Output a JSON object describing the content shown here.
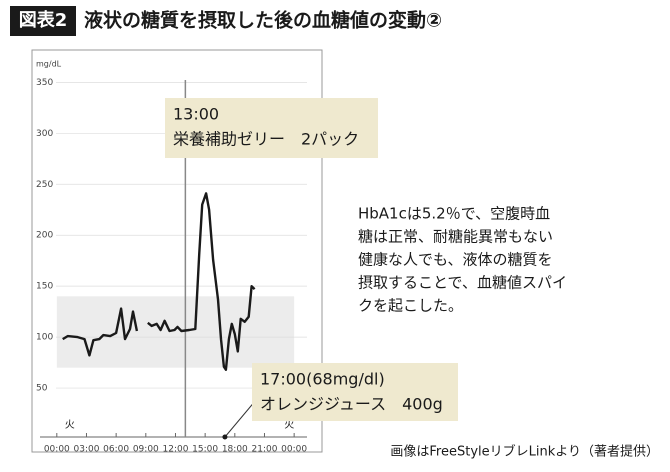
{
  "chart_data": {
    "type": "line",
    "badge": "図表2",
    "title": "液状の糖質を摂取した後の血糖値の変動②",
    "y_unit": "mg/dL",
    "x": [
      0.6,
      1.1,
      2.1,
      2.8,
      3.3,
      3.7,
      4.3,
      4.7,
      5.4,
      6.0,
      6.5,
      6.9,
      7.4,
      7.7,
      8.1,
      8.6,
      9.2,
      9.6,
      10.1,
      10.5,
      10.9,
      11.4,
      11.9,
      12.2,
      12.6,
      13.4,
      14.0,
      14.4,
      14.7,
      15.1,
      15.4,
      15.8,
      16.3,
      16.6,
      16.9,
      17.1,
      17.4,
      17.7,
      18.0,
      18.3,
      18.6,
      19.0,
      19.4,
      19.7,
      20.0
    ],
    "series": [
      {
        "name": "血糖値",
        "color": "#1a1a1a",
        "values": [
          98,
          101,
          100,
          98,
          82,
          97,
          98,
          102,
          101,
          104,
          128,
          98,
          108,
          125,
          106,
          null,
          114,
          111,
          113,
          107,
          116,
          106,
          107,
          110,
          106,
          107,
          108,
          181,
          230,
          241,
          225,
          176,
          137,
          98,
          71,
          68,
          98,
          113,
          103,
          86,
          118,
          115,
          120,
          150,
          147
        ]
      }
    ],
    "xlim": [
      -1.7,
      25.3
    ],
    "xticks": [
      {
        "value": 0,
        "label": "00:00"
      },
      {
        "value": 3,
        "label": "03:00"
      },
      {
        "value": 6,
        "label": "06:00"
      },
      {
        "value": 9,
        "label": "09:00"
      },
      {
        "value": 12,
        "label": "12:00"
      },
      {
        "value": 15,
        "label": "15:00"
      },
      {
        "value": 18,
        "label": "18:00"
      },
      {
        "value": 21,
        "label": "21:00"
      },
      {
        "value": 24,
        "label": "00:00"
      }
    ],
    "ylim": [
      0,
      370
    ],
    "yticks": [
      50,
      100,
      150,
      200,
      250,
      300,
      350
    ],
    "target_range": [
      70,
      140
    ],
    "target_color": "#ececec",
    "day_labels": [
      "火",
      "火"
    ],
    "day_label_x": [
      0.8,
      23
    ],
    "event_line_x": 13,
    "event_point_x": 17,
    "annotations": [
      {
        "lines": [
          "13:00",
          "栄養補助ゼリー　2パック"
        ]
      },
      {
        "lines": [
          "17:00(68mg/dl)",
          "オレンジジュース　400g"
        ]
      }
    ],
    "note_lines": [
      "HbA1cは5.2％で、空腹時血",
      "糖は正常、耐糖能異常もない",
      "健康な人でも、液体の糖質を",
      "摂取することで、血糖値スパイ",
      "クを起こした。"
    ],
    "caption": "画像はFreeStyleリブレLinkより（著者提供）"
  }
}
